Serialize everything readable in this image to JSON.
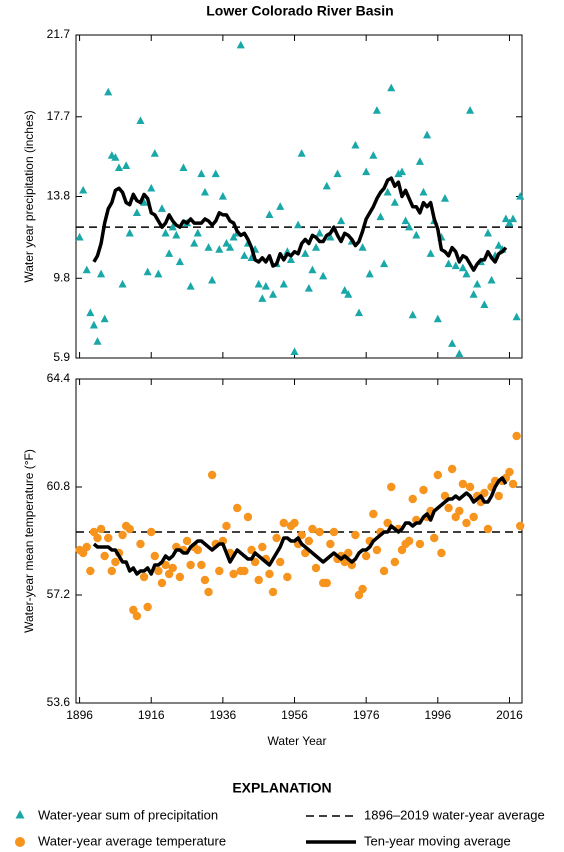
{
  "legend": {
    "title": "EXPLANATION"
  },
  "chart_data": [
    {
      "type": "scatter",
      "title": "Lower Colorado River Basin",
      "ylabel": "Water year precipitation (inches)",
      "xlim": [
        1895,
        2019.5
      ],
      "ylim": [
        5.9,
        21.7
      ],
      "yticks": [
        21.7,
        17.7,
        13.8,
        9.8,
        5.9
      ],
      "xticks": [
        1896,
        1916,
        1936,
        1956,
        1976,
        1996,
        2016
      ],
      "x": [
        1896,
        1897,
        1898,
        1899,
        1900,
        1901,
        1902,
        1903,
        1904,
        1905,
        1906,
        1907,
        1908,
        1909,
        1910,
        1911,
        1912,
        1913,
        1914,
        1915,
        1916,
        1917,
        1918,
        1919,
        1920,
        1921,
        1922,
        1923,
        1924,
        1925,
        1926,
        1927,
        1928,
        1929,
        1930,
        1931,
        1932,
        1933,
        1934,
        1935,
        1936,
        1937,
        1938,
        1939,
        1940,
        1941,
        1942,
        1943,
        1944,
        1945,
        1946,
        1947,
        1948,
        1949,
        1950,
        1951,
        1952,
        1953,
        1954,
        1955,
        1956,
        1957,
        1958,
        1959,
        1960,
        1961,
        1962,
        1963,
        1964,
        1965,
        1966,
        1967,
        1968,
        1969,
        1970,
        1971,
        1972,
        1973,
        1974,
        1975,
        1976,
        1977,
        1978,
        1979,
        1980,
        1981,
        1982,
        1983,
        1984,
        1985,
        1986,
        1987,
        1988,
        1989,
        1990,
        1991,
        1992,
        1993,
        1994,
        1995,
        1996,
        1997,
        1998,
        1999,
        2000,
        2001,
        2002,
        2003,
        2004,
        2005,
        2006,
        2007,
        2008,
        2009,
        2010,
        2011,
        2012,
        2013,
        2014,
        2015,
        2016,
        2017,
        2018,
        2019
      ],
      "series": [
        {
          "name": "Water-year sum of precipitation",
          "color": "#1aa7a8",
          "marker": "triangle",
          "values": [
            11.8,
            14.1,
            10.2,
            8.1,
            7.5,
            6.7,
            10.0,
            7.8,
            18.9,
            15.8,
            15.7,
            15.2,
            9.5,
            15.3,
            12.0,
            13.8,
            13.0,
            17.5,
            13.5,
            10.1,
            14.2,
            15.9,
            10.0,
            13.2,
            12.0,
            11.0,
            12.3,
            11.9,
            10.6,
            15.2,
            12.5,
            9.4,
            11.5,
            12.0,
            14.9,
            14.0,
            11.3,
            9.7,
            14.9,
            11.2,
            13.8,
            11.5,
            11.3,
            11.8,
            12.0,
            21.2,
            10.9,
            11.5,
            10.8,
            11.2,
            9.5,
            8.8,
            9.4,
            12.9,
            9.0,
            10.5,
            13.3,
            9.5,
            11.1,
            10.7,
            6.2,
            12.4,
            15.9,
            11.0,
            9.3,
            10.2,
            11.3,
            12.0,
            9.9,
            14.3,
            11.8,
            12.2,
            14.9,
            12.6,
            9.2,
            9.0,
            11.6,
            16.3,
            8.1,
            11.3,
            15.0,
            10.0,
            15.8,
            18.0,
            12.8,
            10.5,
            14.0,
            19.1,
            13.5,
            14.9,
            15.0,
            12.6,
            12.3,
            8.0,
            11.9,
            15.5,
            14.0,
            16.8,
            11.0,
            12.6,
            7.8,
            11.8,
            13.7,
            10.5,
            6.6,
            10.4,
            6.1,
            10.3,
            10.0,
            18.0,
            9.0,
            9.5,
            10.6,
            8.5,
            12.0,
            9.7,
            10.9,
            11.4,
            11.2,
            12.7,
            12.5,
            12.7,
            7.9,
            13.8
          ]
        },
        {
          "name": "Ten-year moving average",
          "color": "#000000",
          "marker": "line",
          "values": [
            null,
            null,
            null,
            null,
            10.6,
            10.9,
            11.5,
            12.5,
            13.2,
            13.5,
            14.1,
            14.2,
            14.0,
            13.5,
            13.4,
            13.9,
            13.6,
            13.5,
            13.9,
            13.7,
            13.0,
            12.9,
            12.6,
            12.3,
            12.5,
            12.9,
            12.6,
            12.4,
            12.3,
            12.6,
            12.5,
            12.7,
            12.5,
            12.5,
            12.5,
            12.7,
            12.6,
            12.4,
            12.6,
            13.0,
            12.9,
            12.9,
            12.6,
            12.5,
            12.1,
            11.9,
            12.0,
            11.7,
            11.3,
            10.7,
            10.6,
            10.8,
            10.6,
            10.9,
            10.4,
            10.5,
            11.0,
            10.7,
            11.0,
            10.9,
            11.1,
            11.0,
            11.5,
            11.7,
            11.5,
            11.9,
            11.8,
            11.6,
            11.6,
            11.9,
            12.0,
            12.3,
            11.9,
            11.6,
            12.0,
            11.9,
            11.7,
            11.4,
            11.6,
            12.1,
            12.7,
            13.0,
            13.3,
            13.7,
            14.0,
            14.2,
            14.6,
            14.7,
            14.3,
            14.5,
            13.8,
            14.1,
            13.7,
            13.3,
            13.3,
            13.0,
            13.5,
            13.3,
            13.5,
            12.7,
            12.2,
            11.2,
            11.1,
            10.9,
            11.3,
            11.1,
            10.6,
            10.9,
            10.8,
            10.5,
            10.2,
            10.5,
            10.7,
            10.7,
            11.1,
            10.8,
            10.6,
            11.0,
            11.1,
            11.3,
            null,
            null,
            null,
            null
          ]
        }
      ],
      "reference": {
        "name": "1896–2019 water-year average",
        "value": 12.3,
        "color": "#000000"
      }
    },
    {
      "type": "scatter",
      "xlabel": "Water Year",
      "ylabel": "Water-year mean temperature (°F)",
      "xlim": [
        1895,
        2019.5
      ],
      "ylim": [
        53.6,
        64.4
      ],
      "yticks": [
        64.4,
        60.8,
        57.2,
        53.6
      ],
      "xticks": [
        1896,
        1916,
        1936,
        1956,
        1976,
        1996,
        2016
      ],
      "x": [
        1896,
        1897,
        1898,
        1899,
        1900,
        1901,
        1902,
        1903,
        1904,
        1905,
        1906,
        1907,
        1908,
        1909,
        1910,
        1911,
        1912,
        1913,
        1914,
        1915,
        1916,
        1917,
        1918,
        1919,
        1920,
        1921,
        1922,
        1923,
        1924,
        1925,
        1926,
        1927,
        1928,
        1929,
        1930,
        1931,
        1932,
        1933,
        1934,
        1935,
        1936,
        1937,
        1938,
        1939,
        1940,
        1941,
        1942,
        1943,
        1944,
        1945,
        1946,
        1947,
        1948,
        1949,
        1950,
        1951,
        1952,
        1953,
        1954,
        1955,
        1956,
        1957,
        1958,
        1959,
        1960,
        1961,
        1962,
        1963,
        1964,
        1965,
        1966,
        1967,
        1968,
        1969,
        1970,
        1971,
        1972,
        1973,
        1974,
        1975,
        1976,
        1977,
        1978,
        1979,
        1980,
        1981,
        1982,
        1983,
        1984,
        1985,
        1986,
        1987,
        1988,
        1989,
        1990,
        1991,
        1992,
        1993,
        1994,
        1995,
        1996,
        1997,
        1998,
        1999,
        2000,
        2001,
        2002,
        2003,
        2004,
        2005,
        2006,
        2007,
        2008,
        2009,
        2010,
        2011,
        2012,
        2013,
        2014,
        2015,
        2016,
        2017,
        2018,
        2019
      ],
      "series": [
        {
          "name": "Water-year average temperature",
          "color": "#f7941d",
          "marker": "circle",
          "values": [
            58.7,
            58.6,
            58.8,
            58.0,
            59.3,
            59.1,
            59.4,
            58.5,
            59.1,
            58.0,
            58.3,
            58.6,
            59.2,
            59.5,
            59.4,
            56.7,
            56.5,
            58.9,
            57.8,
            56.8,
            59.3,
            58.5,
            58.0,
            57.6,
            58.2,
            57.9,
            58.1,
            58.8,
            57.8,
            58.7,
            59.0,
            58.2,
            58.8,
            58.7,
            58.2,
            57.7,
            57.3,
            61.2,
            58.9,
            58.0,
            59.0,
            59.5,
            58.6,
            57.9,
            60.1,
            58.0,
            58.0,
            59.8,
            58.7,
            58.3,
            57.7,
            58.8,
            58.4,
            57.9,
            57.3,
            59.1,
            58.3,
            59.6,
            57.8,
            59.5,
            59.6,
            58.9,
            59.2,
            58.6,
            59.0,
            59.4,
            58.1,
            59.3,
            57.6,
            57.6,
            58.9,
            59.3,
            58.4,
            58.5,
            58.3,
            58.6,
            58.2,
            59.2,
            57.2,
            57.4,
            58.5,
            59.0,
            59.9,
            58.7,
            59.3,
            58.0,
            59.6,
            60.8,
            58.3,
            59.4,
            58.7,
            58.9,
            59.0,
            60.4,
            59.7,
            58.9,
            60.7,
            59.8,
            60.0,
            59.1,
            61.2,
            58.6,
            60.5,
            60.1,
            61.4,
            59.8,
            60.0,
            60.9,
            59.6,
            60.8,
            59.8,
            60.5,
            60.3,
            60.6,
            59.4,
            60.8,
            61.0,
            60.5,
            61.0,
            61.1,
            61.3,
            60.9,
            62.5,
            59.5
          ]
        },
        {
          "color": "#000000",
          "marker": "line",
          "values": [
            null,
            null,
            null,
            null,
            58.9,
            58.8,
            58.8,
            58.8,
            58.8,
            58.7,
            58.7,
            58.5,
            58.3,
            58.3,
            58.0,
            58.1,
            57.9,
            58.0,
            58.0,
            58.1,
            57.9,
            58.2,
            58.2,
            58.3,
            58.5,
            58.4,
            58.5,
            58.7,
            58.7,
            58.6,
            58.6,
            58.8,
            58.9,
            59.0,
            59.0,
            58.9,
            58.8,
            58.7,
            58.8,
            58.9,
            58.9,
            58.6,
            58.3,
            58.5,
            58.7,
            58.6,
            58.5,
            58.4,
            58.4,
            58.6,
            58.5,
            58.4,
            58.3,
            58.2,
            58.4,
            58.6,
            58.8,
            59.1,
            59.1,
            59.0,
            59.0,
            59.1,
            58.9,
            58.8,
            58.7,
            58.6,
            58.5,
            58.4,
            58.3,
            58.4,
            58.5,
            58.6,
            58.5,
            58.4,
            58.5,
            58.4,
            58.3,
            58.4,
            58.6,
            58.7,
            58.7,
            58.8,
            59.0,
            59.1,
            59.2,
            59.3,
            59.3,
            59.5,
            59.4,
            59.3,
            59.4,
            59.6,
            59.6,
            59.5,
            59.6,
            59.6,
            59.8,
            59.9,
            59.7,
            60.0,
            60.1,
            60.2,
            60.3,
            60.4,
            60.4,
            60.5,
            60.4,
            60.5,
            60.6,
            60.5,
            60.3,
            60.4,
            60.5,
            60.3,
            60.3,
            60.5,
            60.8,
            61.0,
            61.1,
            60.9,
            null,
            null,
            null,
            null
          ]
        }
      ],
      "reference": {
        "value": 59.3,
        "color": "#000000"
      }
    }
  ]
}
